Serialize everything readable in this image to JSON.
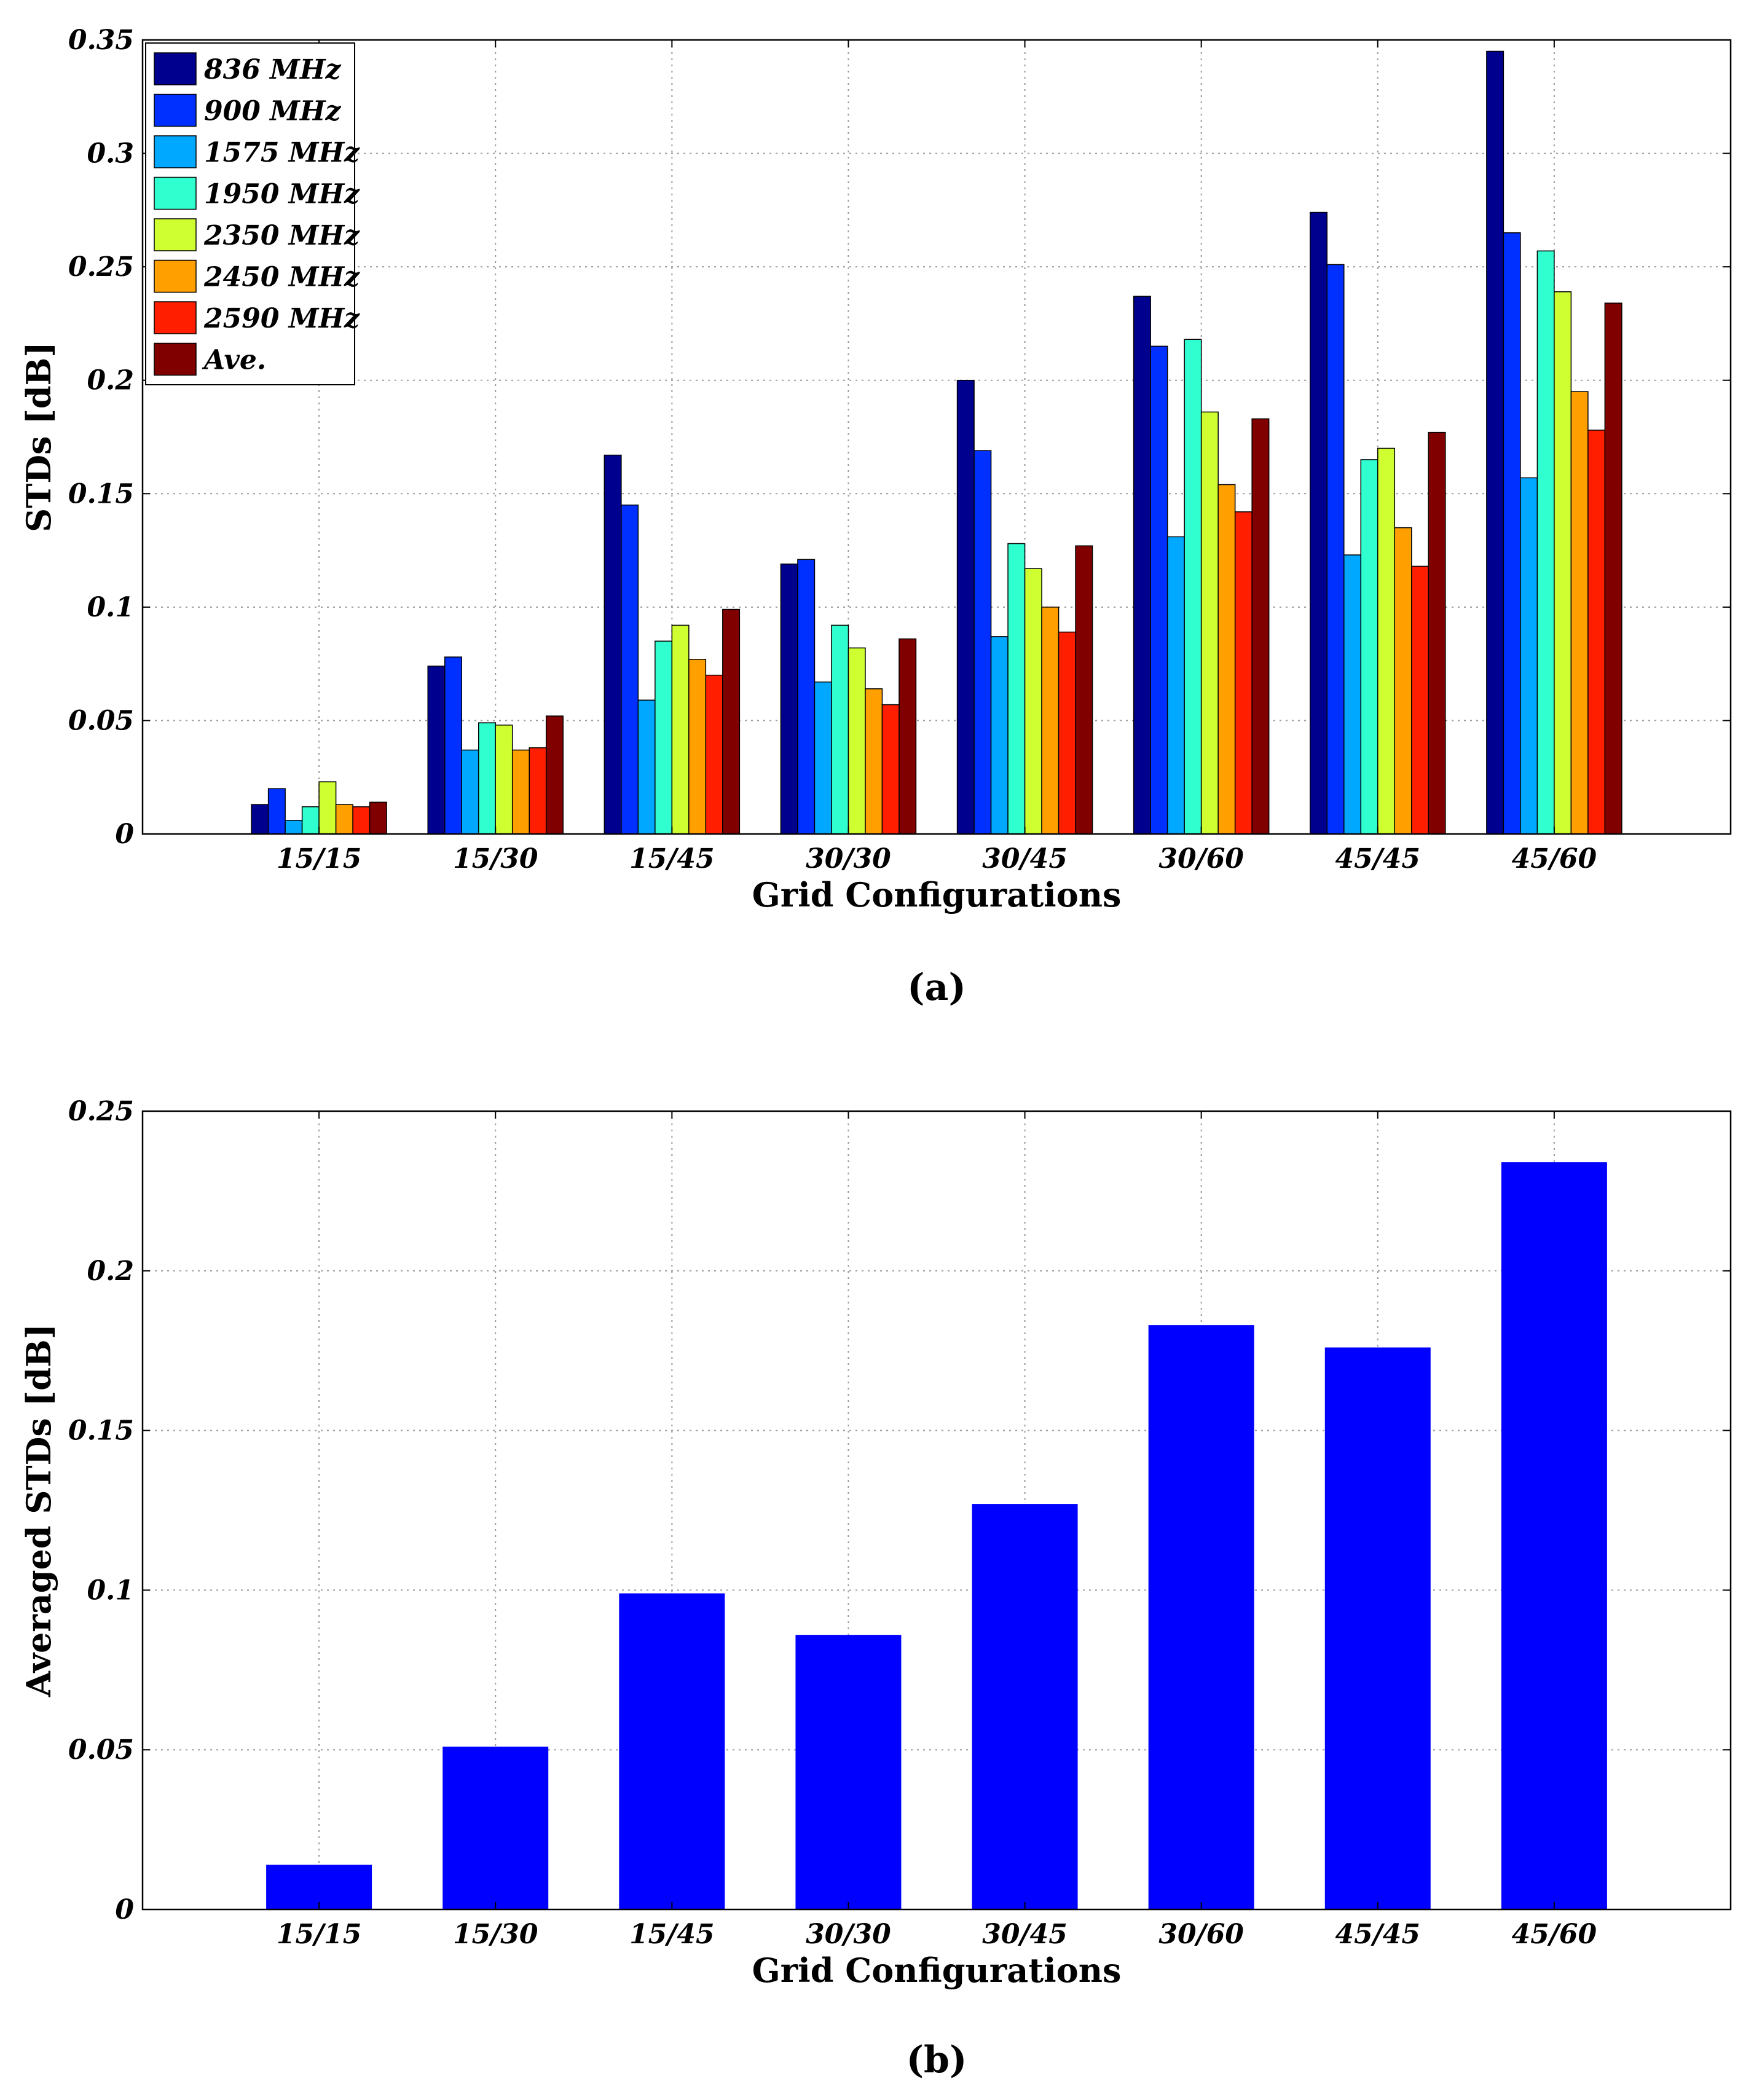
{
  "chart_data": [
    {
      "type": "bar",
      "panel_label": "(a)",
      "categories": [
        "15/15",
        "15/30",
        "15/45",
        "30/30",
        "30/45",
        "30/60",
        "45/45",
        "45/60"
      ],
      "series": [
        {
          "name": "836 MHz",
          "color": "#00008F",
          "values": [
            0.013,
            0.074,
            0.167,
            0.119,
            0.2,
            0.237,
            0.274,
            0.345
          ]
        },
        {
          "name": "900 MHz",
          "color": "#0030FF",
          "values": [
            0.02,
            0.078,
            0.145,
            0.121,
            0.169,
            0.215,
            0.251,
            0.265
          ]
        },
        {
          "name": "1575 MHz",
          "color": "#00A8FF",
          "values": [
            0.006,
            0.037,
            0.059,
            0.067,
            0.087,
            0.131,
            0.123,
            0.157
          ]
        },
        {
          "name": "1950 MHz",
          "color": "#30FFCF",
          "values": [
            0.012,
            0.049,
            0.085,
            0.092,
            0.128,
            0.218,
            0.165,
            0.257
          ]
        },
        {
          "name": "2350 MHz",
          "color": "#CFFF30",
          "values": [
            0.023,
            0.048,
            0.092,
            0.082,
            0.117,
            0.186,
            0.17,
            0.239
          ]
        },
        {
          "name": "2450 MHz",
          "color": "#FFA000",
          "values": [
            0.013,
            0.037,
            0.077,
            0.064,
            0.1,
            0.154,
            0.135,
            0.195
          ]
        },
        {
          "name": "2590 MHz",
          "color": "#FF1F00",
          "values": [
            0.012,
            0.038,
            0.07,
            0.057,
            0.089,
            0.142,
            0.118,
            0.178
          ]
        },
        {
          "name": "Ave.",
          "color": "#800000",
          "values": [
            0.014,
            0.052,
            0.099,
            0.086,
            0.127,
            0.183,
            0.177,
            0.234
          ]
        }
      ],
      "xlabel": "Grid Configurations",
      "ylabel": "STDs [dB]",
      "ylim": [
        0,
        0.35
      ],
      "yticks": [
        0,
        0.05,
        0.1,
        0.15,
        0.2,
        0.25,
        0.3,
        0.35
      ],
      "ytick_labels": [
        "0",
        "0.05",
        "0.1",
        "0.15",
        "0.2",
        "0.25",
        "0.3",
        "0.35"
      ],
      "xlim": [
        0,
        9
      ],
      "grid": true,
      "legend": "top-left"
    },
    {
      "type": "bar",
      "panel_label": "(b)",
      "categories": [
        "15/15",
        "15/30",
        "15/45",
        "30/30",
        "30/45",
        "30/60",
        "45/45",
        "45/60"
      ],
      "series": [
        {
          "name": "Averaged STDs",
          "color": "#0000FF",
          "values": [
            0.014,
            0.051,
            0.099,
            0.086,
            0.127,
            0.183,
            0.176,
            0.234
          ]
        }
      ],
      "xlabel": "Grid Configurations",
      "ylabel": "Averaged STDs [dB]",
      "ylim": [
        0,
        0.25
      ],
      "yticks": [
        0,
        0.05,
        0.1,
        0.15,
        0.2,
        0.25
      ],
      "ytick_labels": [
        "0",
        "0.05",
        "0.1",
        "0.15",
        "0.2",
        "0.25"
      ],
      "xlim": [
        0,
        9
      ],
      "grid": true
    }
  ]
}
